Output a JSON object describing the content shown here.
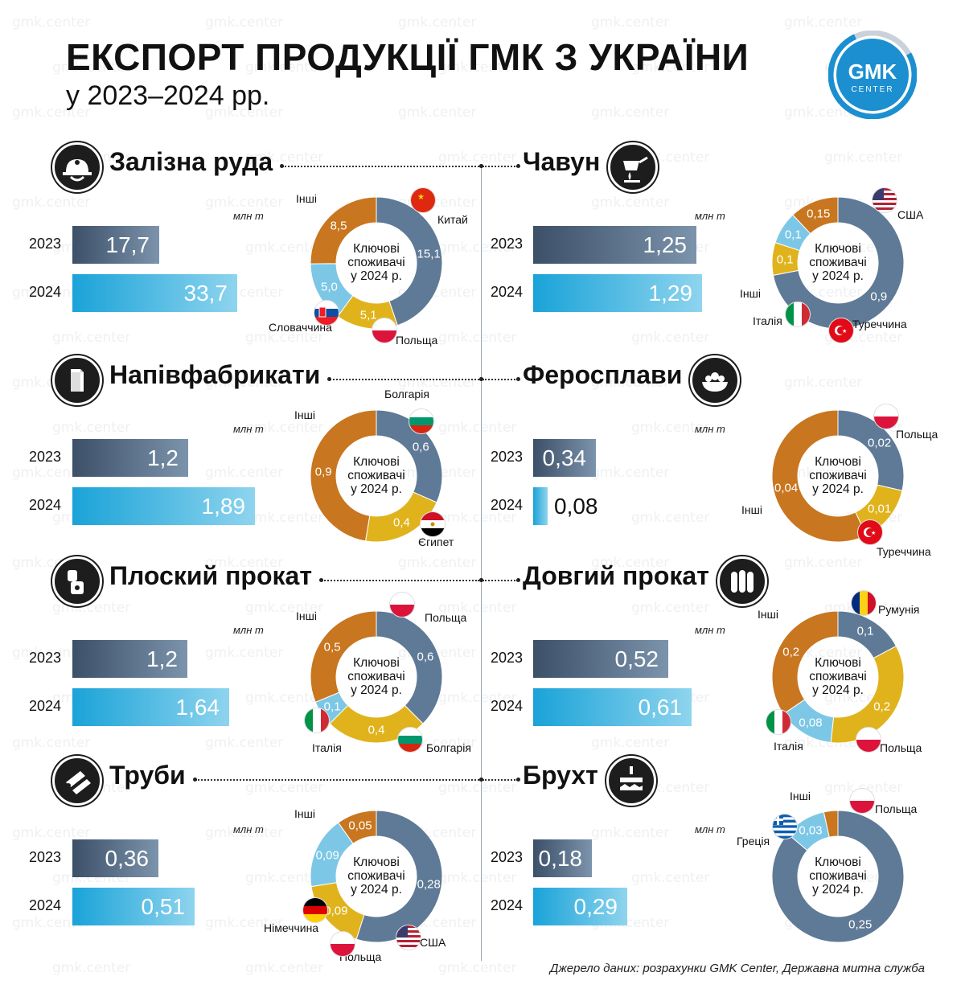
{
  "header": {
    "title": "ЕКСПОРТ ПРОДУКЦІЇ ГМК З УКРАЇНИ",
    "subtitle": "у 2023–2024 рр.",
    "logo_top": "GMK",
    "logo_bottom": "CENTER"
  },
  "watermark": "gmk.center",
  "source": "Джерело даних: розрахунки GMK Center, Державна митна служба",
  "colors": {
    "bar_2023": "#3c5068",
    "bar_2024": "#1aa3d8",
    "donut_steel": "#5f7a96",
    "donut_orange": "#c8761f",
    "donut_yellow": "#e0b31c",
    "donut_light": "#7cc7e6",
    "accent_logo": "#1c8fd0"
  },
  "common": {
    "center_line1": "Ключові",
    "center_line2": "споживачі",
    "center_line3": "у 2024 р.",
    "unit": "млн т",
    "year_2023": "2023",
    "year_2024": "2024"
  },
  "chart_data": [
    {
      "type": "bar",
      "title": "Залізна руда",
      "icon": "miner-helmet-icon",
      "categories": [
        "2023",
        "2024"
      ],
      "values": [
        17.7,
        33.7
      ],
      "labels": [
        "17,7",
        "33,7"
      ],
      "unit": "млн т",
      "donut": {
        "type": "pie",
        "slices": [
          {
            "name": "Китай",
            "value": 15.1,
            "label": "15,1",
            "flag": "china"
          },
          {
            "name": "Польща",
            "value": 5.1,
            "label": "5,1",
            "flag": "poland"
          },
          {
            "name": "Словаччина",
            "value": 5.0,
            "label": "5,0",
            "flag": "slovakia"
          },
          {
            "name": "Інші",
            "value": 8.5,
            "label": "8,5"
          }
        ]
      }
    },
    {
      "type": "bar",
      "title": "Чавун",
      "icon": "ladle-icon",
      "categories": [
        "2023",
        "2024"
      ],
      "values": [
        1.25,
        1.29
      ],
      "labels": [
        "1,25",
        "1,29"
      ],
      "unit": "млн т",
      "donut": {
        "type": "pie",
        "slices": [
          {
            "name": "США",
            "value": 0.9,
            "label": "0,9",
            "flag": "usa"
          },
          {
            "name": "Туреччина",
            "value": 0.1,
            "label": "0,1",
            "flag": "turkey"
          },
          {
            "name": "Італія",
            "value": 0.1,
            "label": "0,1",
            "flag": "italy"
          },
          {
            "name": "Інші",
            "value": 0.15,
            "label": "0,15"
          }
        ]
      }
    },
    {
      "type": "bar",
      "title": "Напівфабрикати",
      "icon": "billet-icon",
      "categories": [
        "2023",
        "2024"
      ],
      "values": [
        1.2,
        1.89
      ],
      "labels": [
        "1,2",
        "1,89"
      ],
      "unit": "млн т",
      "donut": {
        "type": "pie",
        "slices": [
          {
            "name": "Болгарія",
            "value": 0.6,
            "label": "0,6",
            "flag": "bulgaria"
          },
          {
            "name": "Єгипет",
            "value": 0.4,
            "label": "0,4",
            "flag": "egypt"
          },
          {
            "name": "Інші",
            "value": 0.9,
            "label": "0,9"
          }
        ]
      }
    },
    {
      "type": "bar",
      "title": "Феросплави",
      "icon": "ore-bowl-icon",
      "categories": [
        "2023",
        "2024"
      ],
      "values": [
        0.34,
        0.08
      ],
      "labels": [
        "0,34",
        "0,08"
      ],
      "unit": "млн т",
      "donut": {
        "type": "pie",
        "slices": [
          {
            "name": "Польща",
            "value": 0.02,
            "label": "0,02",
            "flag": "poland"
          },
          {
            "name": "Туреччина",
            "value": 0.01,
            "label": "0,01",
            "flag": "turkey"
          },
          {
            "name": "Інші",
            "value": 0.04,
            "label": "0,04"
          }
        ]
      }
    },
    {
      "type": "bar",
      "title": "Плоский прокат",
      "icon": "steel-coil-icon",
      "categories": [
        "2023",
        "2024"
      ],
      "values": [
        1.2,
        1.64
      ],
      "labels": [
        "1,2",
        "1,64"
      ],
      "unit": "млн т",
      "donut": {
        "type": "pie",
        "slices": [
          {
            "name": "Польща",
            "value": 0.6,
            "label": "0,6",
            "flag": "poland"
          },
          {
            "name": "Болгарія",
            "value": 0.4,
            "label": "0,4",
            "flag": "bulgaria"
          },
          {
            "name": "Італія",
            "value": 0.1,
            "label": "0,1",
            "flag": "italy"
          },
          {
            "name": "Інші",
            "value": 0.5,
            "label": "0,5"
          }
        ]
      }
    },
    {
      "type": "bar",
      "title": "Довгий прокат",
      "icon": "rebar-bundle-icon",
      "categories": [
        "2023",
        "2024"
      ],
      "values": [
        0.52,
        0.61
      ],
      "labels": [
        "0,52",
        "0,61"
      ],
      "unit": "млн т",
      "donut": {
        "type": "pie",
        "slices": [
          {
            "name": "Румунія",
            "value": 0.1,
            "label": "0,1",
            "flag": "romania"
          },
          {
            "name": "Польща",
            "value": 0.2,
            "label": "0,2",
            "flag": "poland"
          },
          {
            "name": "Італія",
            "value": 0.08,
            "label": "0,08",
            "flag": "italy"
          },
          {
            "name": "Інші",
            "value": 0.2,
            "label": "0,2"
          }
        ]
      }
    },
    {
      "type": "bar",
      "title": "Труби",
      "icon": "pipes-icon",
      "categories": [
        "2023",
        "2024"
      ],
      "values": [
        0.36,
        0.51
      ],
      "labels": [
        "0,36",
        "0,51"
      ],
      "unit": "млн т",
      "donut": {
        "type": "pie",
        "slices": [
          {
            "name": "Інші",
            "value": 0.28,
            "label": "0,28"
          },
          {
            "name": "США",
            "value": 0.09,
            "label": "0,09",
            "flag": "usa"
          },
          {
            "name": "Польща",
            "value": 0.09,
            "label": "0,09",
            "flag": "poland"
          },
          {
            "name": "Німеччина",
            "value": 0.05,
            "label": "0,05",
            "flag": "germany"
          }
        ]
      }
    },
    {
      "type": "bar",
      "title": "Брухт",
      "icon": "scrap-magnet-icon",
      "categories": [
        "2023",
        "2024"
      ],
      "values": [
        0.18,
        0.29
      ],
      "labels": [
        "0,18",
        "0,29"
      ],
      "unit": "млн т",
      "donut": {
        "type": "pie",
        "slices": [
          {
            "name": "Польща",
            "value": 0.25,
            "label": "0,25",
            "flag": "poland"
          },
          {
            "name": "Греція",
            "value": 0.03,
            "label": "0,03",
            "flag": "greece"
          },
          {
            "name": "Інші",
            "value": 0.01,
            "label": ""
          }
        ]
      }
    }
  ]
}
